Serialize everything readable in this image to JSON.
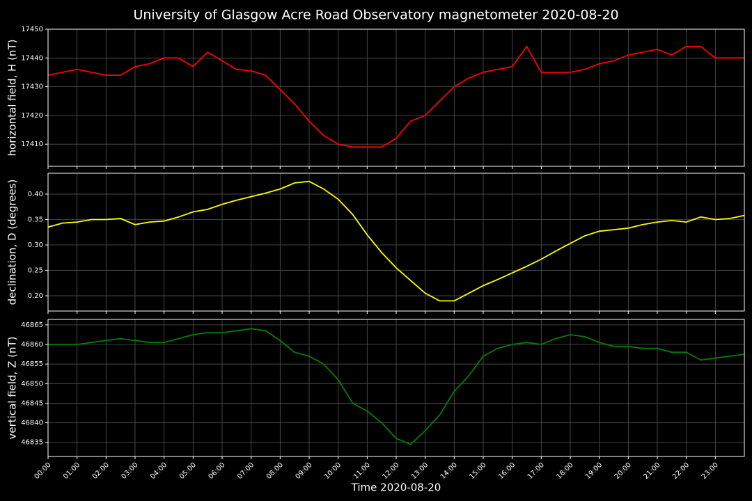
{
  "title": "University of Glasgow Acre Road Observatory magnetometer 2020-08-20",
  "chart_data": [
    {
      "type": "line",
      "ylabel": "horizontal field, H (nT)",
      "color": "#ff0000",
      "grid": true,
      "xlim": [
        0,
        24
      ],
      "xticks": [
        0,
        1,
        2,
        3,
        4,
        5,
        6,
        7,
        8,
        9,
        10,
        11,
        12,
        13,
        14,
        15,
        16,
        17,
        18,
        19,
        20,
        21,
        22,
        23
      ],
      "ylim": [
        17402.3,
        17450
      ],
      "yticks": [
        17410,
        17420,
        17430,
        17440,
        17450
      ],
      "x": [
        0,
        0.5,
        1,
        1.5,
        2,
        2.5,
        3,
        3.5,
        4,
        4.5,
        5,
        5.5,
        6,
        6.5,
        7,
        7.5,
        8,
        8.5,
        9,
        9.5,
        10,
        10.5,
        11,
        11.5,
        12,
        12.5,
        13,
        13.5,
        14,
        14.5,
        15,
        15.5,
        16,
        16.5,
        17,
        17.5,
        18,
        18.5,
        19,
        19.5,
        20,
        20.5,
        21,
        21.5,
        22,
        22.5,
        23,
        23.5,
        24
      ],
      "values": [
        17434,
        17435,
        17436,
        17435,
        17434,
        17434,
        17437,
        17438,
        17440,
        17440,
        17437,
        17442,
        17439,
        17436,
        17435.5,
        17434,
        17429,
        17424,
        17418,
        17413,
        17410,
        17409,
        17409,
        17409,
        17412,
        17418,
        17420,
        17425,
        17430,
        17433,
        17435,
        17436,
        17437,
        17444,
        17435,
        17435,
        17435,
        17436,
        17438,
        17439,
        17441,
        17442,
        17443,
        17441,
        17444,
        17444,
        17440,
        17440,
        17440
      ]
    },
    {
      "type": "line",
      "ylabel": "declination, D (degrees)",
      "color": "#ffff00",
      "grid": true,
      "xlim": [
        0,
        24
      ],
      "xticks": [
        0,
        1,
        2,
        3,
        4,
        5,
        6,
        7,
        8,
        9,
        10,
        11,
        12,
        13,
        14,
        15,
        16,
        17,
        18,
        19,
        20,
        21,
        22,
        23
      ],
      "ylim": [
        0.17,
        0.441
      ],
      "yticks": [
        {
          "value": 0.2,
          "label": "0.20"
        },
        {
          "value": 0.25,
          "label": "0.25"
        },
        {
          "value": 0.3,
          "label": "0.30"
        },
        {
          "value": 0.35,
          "label": "0.35"
        },
        {
          "value": 0.4,
          "label": "0.40"
        }
      ],
      "x": [
        0,
        0.5,
        1,
        1.5,
        2,
        2.5,
        3,
        3.5,
        4,
        4.5,
        5,
        5.5,
        6,
        6.5,
        7,
        7.5,
        8,
        8.5,
        9,
        9.5,
        10,
        10.5,
        11,
        11.5,
        12,
        12.5,
        13,
        13.5,
        14,
        14.5,
        15,
        15.5,
        16,
        16.5,
        17,
        17.5,
        18,
        18.5,
        19,
        19.5,
        20,
        20.5,
        21,
        21.5,
        22,
        22.5,
        23,
        23.5,
        24
      ],
      "values": [
        0.335,
        0.343,
        0.345,
        0.35,
        0.35,
        0.352,
        0.34,
        0.345,
        0.347,
        0.355,
        0.365,
        0.37,
        0.38,
        0.388,
        0.395,
        0.402,
        0.41,
        0.422,
        0.425,
        0.41,
        0.39,
        0.36,
        0.32,
        0.285,
        0.255,
        0.23,
        0.205,
        0.19,
        0.19,
        0.205,
        0.22,
        0.232,
        0.245,
        0.258,
        0.272,
        0.288,
        0.303,
        0.318,
        0.327,
        0.33,
        0.333,
        0.34,
        0.345,
        0.348,
        0.345,
        0.355,
        0.35,
        0.352,
        0.358
      ]
    },
    {
      "type": "line",
      "ylabel": "vertical field, Z (nT)",
      "xlabel": "Time 2020-08-20",
      "color": "#008000",
      "grid": true,
      "xlim": [
        0,
        24
      ],
      "xticks": [
        {
          "value": 0,
          "label": "00:00"
        },
        {
          "value": 1,
          "label": "01:00"
        },
        {
          "value": 2,
          "label": "02:00"
        },
        {
          "value": 3,
          "label": "03:00"
        },
        {
          "value": 4,
          "label": "04:00"
        },
        {
          "value": 5,
          "label": "05:00"
        },
        {
          "value": 6,
          "label": "06:00"
        },
        {
          "value": 7,
          "label": "07:00"
        },
        {
          "value": 8,
          "label": "08:00"
        },
        {
          "value": 9,
          "label": "09:00"
        },
        {
          "value": 10,
          "label": "10:00"
        },
        {
          "value": 11,
          "label": "11:00"
        },
        {
          "value": 12,
          "label": "12:00"
        },
        {
          "value": 13,
          "label": "13:00"
        },
        {
          "value": 14,
          "label": "14:00"
        },
        {
          "value": 15,
          "label": "15:00"
        },
        {
          "value": 16,
          "label": "16:00"
        },
        {
          "value": 17,
          "label": "17:00"
        },
        {
          "value": 18,
          "label": "18:00"
        },
        {
          "value": 19,
          "label": "19:00"
        },
        {
          "value": 20,
          "label": "20:00"
        },
        {
          "value": 21,
          "label": "21:00"
        },
        {
          "value": 22,
          "label": "22:00"
        },
        {
          "value": 23,
          "label": "23:00"
        }
      ],
      "ylim": [
        46831.4,
        46866.4
      ],
      "yticks": [
        46835,
        46840,
        46845,
        46850,
        46855,
        46860,
        46865
      ],
      "x": [
        0,
        0.5,
        1,
        1.5,
        2,
        2.5,
        3,
        3.5,
        4,
        4.5,
        5,
        5.5,
        6,
        6.5,
        7,
        7.5,
        8,
        8.5,
        9,
        9.5,
        10,
        10.5,
        11,
        11.5,
        12,
        12.5,
        13,
        13.5,
        14,
        14.5,
        15,
        15.5,
        16,
        16.5,
        17,
        17.5,
        18,
        18.5,
        19,
        19.5,
        20,
        20.5,
        21,
        21.5,
        22,
        22.5,
        23,
        23.5,
        24
      ],
      "values": [
        46860,
        46860,
        46860,
        46860.5,
        46861,
        46861.5,
        46861,
        46860.5,
        46860.5,
        46861.5,
        46862.5,
        46863,
        46863,
        46863.5,
        46864,
        46863.5,
        46861,
        46858,
        46857,
        46855,
        46851,
        46845,
        46843,
        46840,
        46836,
        46834.5,
        46838,
        46842,
        46848,
        46852,
        46857,
        46859,
        46860,
        46860.5,
        46860,
        46861.5,
        46862.5,
        46862,
        46860.5,
        46859.5,
        46859.5,
        46859,
        46859,
        46858,
        46858,
        46856,
        46856.5,
        46857,
        46857.5
      ]
    }
  ]
}
